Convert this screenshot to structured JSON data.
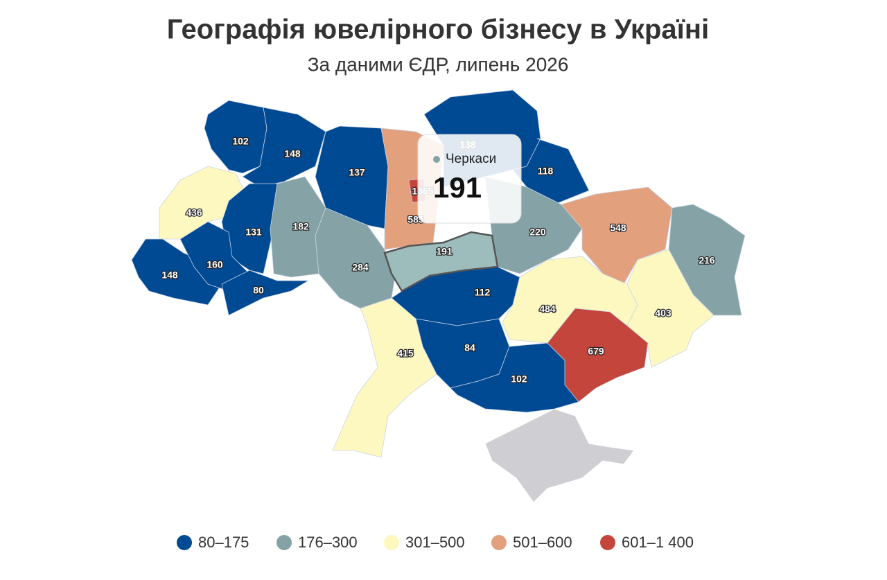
{
  "title": "Географія ювелірного бізнесу в Україні",
  "subtitle": "За даними ЄДР, липень 2026",
  "legend": [
    {
      "label": "80–175",
      "color": "#004a93"
    },
    {
      "label": "176–300",
      "color": "#85a3a6"
    },
    {
      "label": "301–500",
      "color": "#fdf8c0"
    },
    {
      "label": "501–600",
      "color": "#e3a07d"
    },
    {
      "label": "601–1 400",
      "color": "#c4453b"
    }
  ],
  "regions": [
    {
      "value": 102,
      "color": "#004a93"
    },
    {
      "value": 148,
      "color": "#004a93"
    },
    {
      "value": 137,
      "color": "#004a93"
    },
    {
      "value": 585,
      "color": "#e3a07d"
    },
    {
      "value": 1365,
      "color": "#c4453b"
    },
    {
      "value": 138,
      "color": "#004a93"
    },
    {
      "value": 118,
      "color": "#004a93"
    },
    {
      "value": 436,
      "color": "#fdf8c0"
    },
    {
      "value": 131,
      "color": "#004a93"
    },
    {
      "value": 182,
      "color": "#85a3a6"
    },
    {
      "value": 284,
      "color": "#85a3a6"
    },
    {
      "value": 191,
      "color": "#9dbcbc"
    },
    {
      "value": 220,
      "color": "#85a3a6"
    },
    {
      "value": 548,
      "color": "#e3a07d"
    },
    {
      "value": 216,
      "color": "#85a3a6"
    },
    {
      "value": 148,
      "color": "#004a93"
    },
    {
      "value": 160,
      "color": "#004a93"
    },
    {
      "value": 80,
      "color": "#004a93"
    },
    {
      "value": 112,
      "color": "#004a93"
    },
    {
      "value": 415,
      "color": "#fdf8c0"
    },
    {
      "value": 84,
      "color": "#004a93"
    },
    {
      "value": 102,
      "color": "#004a93"
    },
    {
      "value": 484,
      "color": "#fdf8c0"
    },
    {
      "value": 403,
      "color": "#fdf8c0"
    },
    {
      "value": 679,
      "color": "#c4453b"
    }
  ],
  "tooltip": {
    "name": "Черкаси",
    "value": 191,
    "color": "#85a3a6"
  }
}
